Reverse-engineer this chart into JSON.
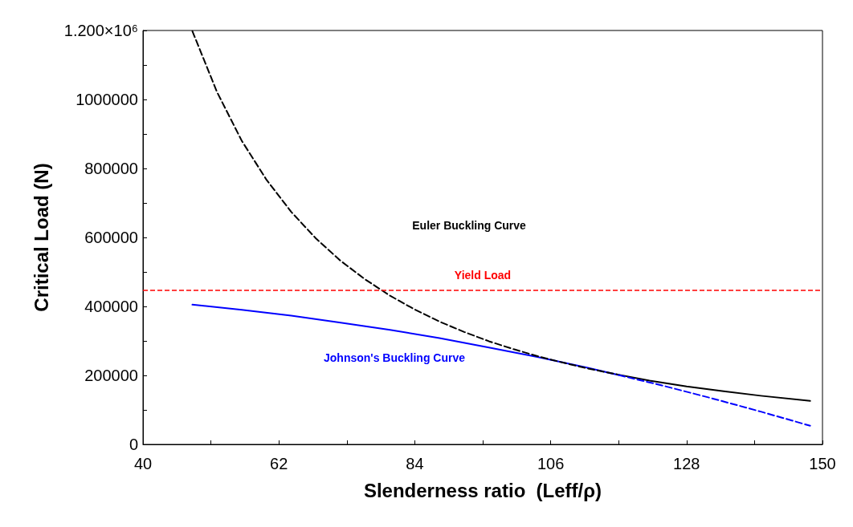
{
  "chart_data": {
    "type": "line",
    "xlabel": "Slenderness ratio  (Leff/ρ)",
    "ylabel": "Critical Load (N)",
    "xlim": [
      40,
      150
    ],
    "xticks": [
      40,
      {
        "value": 51,
        "label": null
      },
      62,
      {
        "value": 73,
        "label": null
      },
      84,
      {
        "value": 95,
        "label": null
      },
      106,
      {
        "value": 117,
        "label": null
      },
      128,
      {
        "value": 139,
        "label": null
      },
      150
    ],
    "ylim": [
      0,
      1200000
    ],
    "yticks": [
      0,
      {
        "value": 100000,
        "label": null
      },
      200000,
      {
        "value": 300000,
        "label": null
      },
      400000,
      {
        "value": 500000,
        "label": null
      },
      600000,
      {
        "value": 700000,
        "label": null
      },
      800000,
      {
        "value": 900000,
        "label": null
      },
      1000000,
      {
        "value": 1100000,
        "label": null
      },
      {
        "value": 1200000,
        "label": "1.200×10⁶"
      }
    ],
    "grid": false,
    "marker": "none",
    "series": [
      {
        "color": "#000000",
        "line_style": "dashed",
        "x": [
          48,
          52,
          56,
          60,
          64,
          68,
          72,
          76,
          80,
          84,
          88,
          92,
          96,
          100,
          104,
          108,
          112,
          117
        ],
        "values": [
          1198000,
          1021000,
          880000,
          767000,
          674000,
          597000,
          532000,
          478000,
          431000,
          391000,
          356000,
          326000,
          299000,
          276000,
          255000,
          237000,
          220000,
          202000
        ]
      },
      {
        "color": "#000000",
        "line_style": "solid",
        "x": [
          117,
          122,
          128,
          134,
          140,
          148
        ],
        "values": [
          202000,
          185000,
          168000,
          154000,
          141000,
          126000
        ]
      },
      {
        "color": "#0000ff",
        "line_style": "solid",
        "x": [
          48,
          56,
          64,
          72,
          80,
          88,
          96,
          104,
          112,
          117
        ],
        "values": [
          405000,
          390000,
          373000,
          353000,
          332000,
          308000,
          281000,
          253000,
          222000,
          201000
        ]
      },
      {
        "color": "#0000ff",
        "line_style": "dashed",
        "x": [
          117,
          124,
          132,
          140,
          148
        ],
        "values": [
          201000,
          171000,
          134000,
          95000,
          54000
        ]
      }
    ],
    "ref_lines": [
      {
        "axis": "y",
        "value": 446000,
        "label": "Yield Load",
        "color": "#ff0000",
        "line_style": "dashed"
      }
    ],
    "annotations": [
      "Euler Buckling Curve",
      "Johnson's Buckling Curve"
    ]
  }
}
